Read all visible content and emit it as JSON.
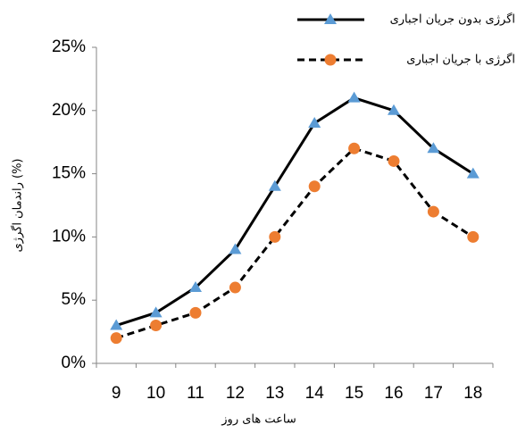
{
  "chart_data": {
    "type": "line",
    "x_label": "ساعت های روز",
    "y_label": "راندمان اگرژی (%)",
    "categories": [
      "9",
      "10",
      "11",
      "12",
      "13",
      "14",
      "15",
      "16",
      "17",
      "18"
    ],
    "series": [
      {
        "name": "اگرژی بدون جریان اجباری",
        "color": "#000000",
        "marker": "triangle",
        "marker_color": "#5b9bd5",
        "dash": "solid",
        "values": [
          3,
          4,
          6,
          9,
          14,
          19,
          21,
          20,
          17,
          15
        ]
      },
      {
        "name": "اگرژی با جریان اجباری",
        "color": "#000000",
        "marker": "circle",
        "marker_color": "#ed7d31",
        "dash": "dashed",
        "values": [
          2,
          3,
          4,
          6,
          10,
          14,
          17,
          16,
          12,
          10
        ]
      }
    ],
    "ylim": [
      0,
      25
    ],
    "yticks": [
      {
        "value": 0,
        "label": "0%"
      },
      {
        "value": 5,
        "label": "5%"
      },
      {
        "value": 10,
        "label": "10%"
      },
      {
        "value": 15,
        "label": "15%"
      },
      {
        "value": 20,
        "label": "20%"
      },
      {
        "value": 25,
        "label": "25%"
      }
    ],
    "grid": false,
    "legend": "top-right"
  }
}
